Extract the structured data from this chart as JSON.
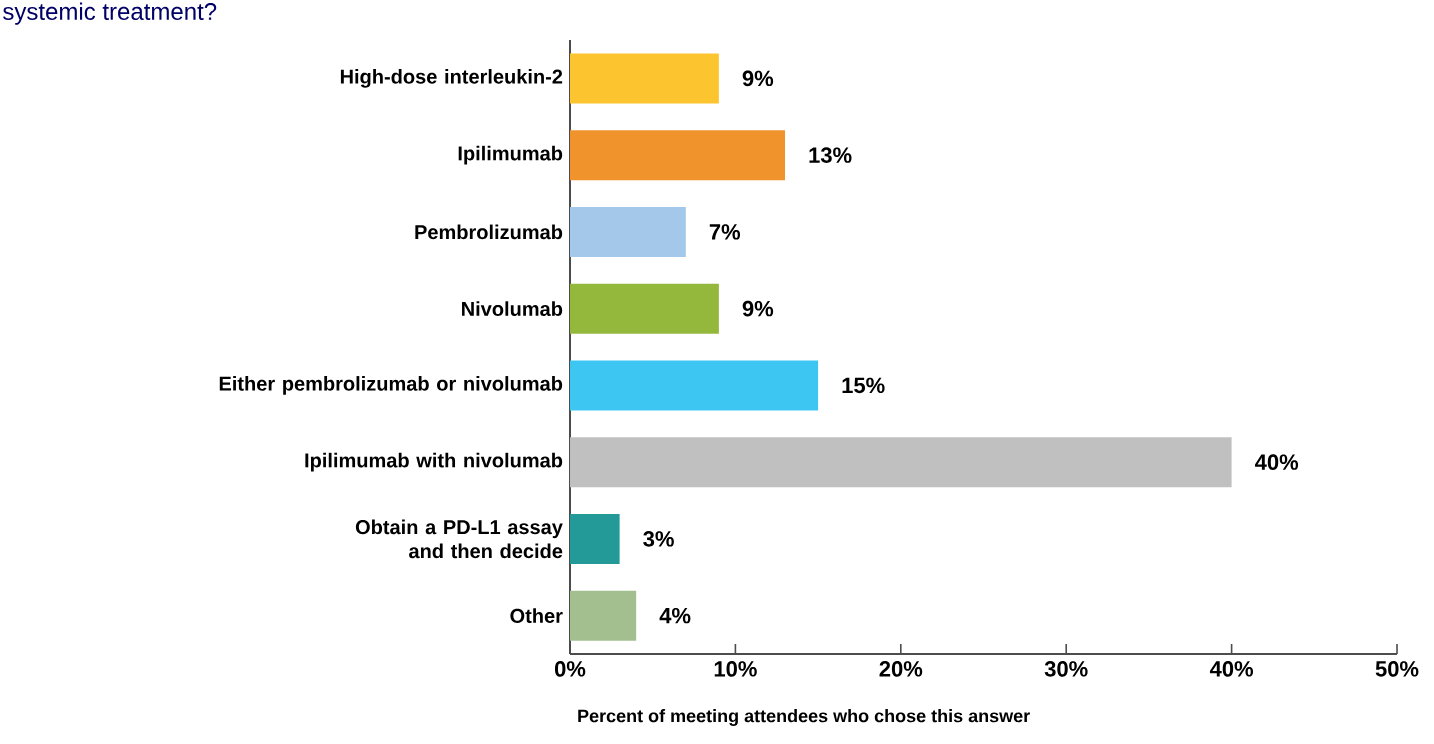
{
  "chart_data": {
    "type": "bar",
    "orientation": "horizontal",
    "title": "systemic treatment?",
    "categories": [
      "High-dose interleukin-2",
      "Ipilimumab",
      "Pembrolizumab",
      "Nivolumab",
      "Either pembrolizumab or nivolumab",
      "Ipilimumab with nivolumab",
      "Obtain a PD-L1 assay and then decide",
      "Other"
    ],
    "values": [
      9,
      13,
      7,
      9,
      15,
      40,
      3,
      4
    ],
    "value_labels": [
      "9%",
      "13%",
      "7%",
      "9%",
      "15%",
      "40%",
      "3%",
      "4%"
    ],
    "colors": [
      "#fcc52f",
      "#f1932c",
      "#a3c8ea",
      "#94b83b",
      "#3dc6f2",
      "#c0c0c0",
      "#249a98",
      "#a3bf8f"
    ],
    "xlim": [
      0,
      50
    ],
    "xticks": [
      {
        "value": 0,
        "label": "0%"
      },
      {
        "value": 10,
        "label": "10%"
      },
      {
        "value": 20,
        "label": "20%"
      },
      {
        "value": 30,
        "label": "30%"
      },
      {
        "value": 40,
        "label": "40%"
      },
      {
        "value": 50,
        "label": "50%"
      }
    ],
    "xlabel": "Percent of meeting attendees who chose this answer",
    "grid": false
  }
}
